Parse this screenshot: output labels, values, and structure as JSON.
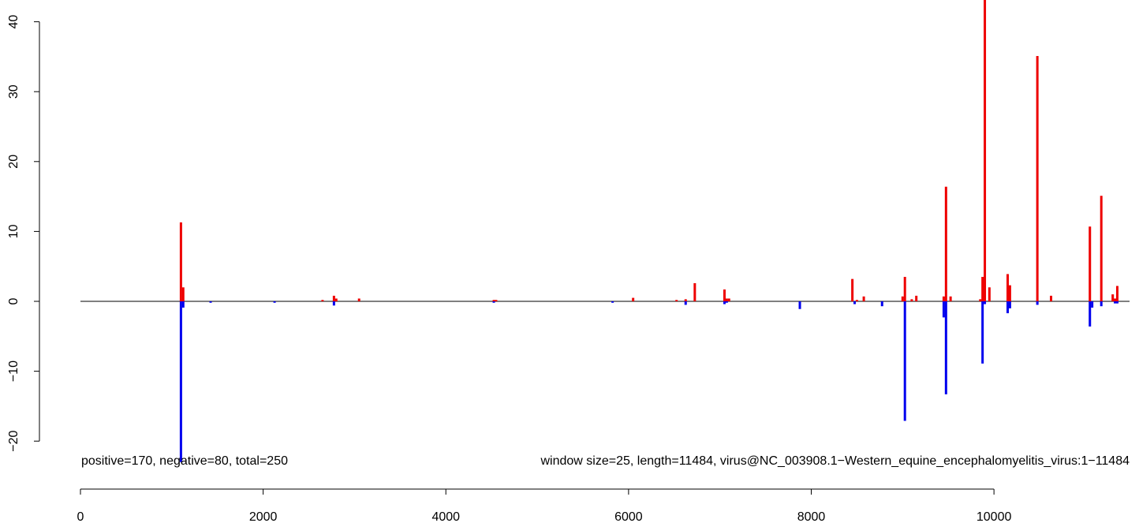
{
  "chart_data": {
    "type": "bar",
    "xlim": [
      0,
      11484
    ],
    "ylim": [
      -22,
      45
    ],
    "x_ticks": [
      0,
      2000,
      4000,
      6000,
      8000,
      10000
    ],
    "y_ticks": [
      -20,
      -10,
      0,
      10,
      20,
      30,
      40
    ],
    "annotations": {
      "counts": "positive=170, negative=80, total=250",
      "window": "window size=25, length=11484, virus@NC_003908.1−Western_equine_encephalomyelitis_virus:1−11484"
    },
    "colors": {
      "positive": "#ee0000",
      "negative": "#0000ee",
      "baseline": "#000000"
    },
    "series": [
      {
        "name": "positive",
        "x": [
          1100,
          1125,
          2650,
          2775,
          2800,
          3050,
          4525,
          4550,
          6050,
          6525,
          6625,
          6725,
          7050,
          7075,
          7100,
          8450,
          8500,
          8575,
          9000,
          9025,
          9100,
          9150,
          9450,
          9475,
          9525,
          9850,
          9875,
          9900,
          9950,
          10150,
          10175,
          10475,
          10625,
          11050,
          11175,
          11300,
          11325,
          11350
        ],
        "values": [
          11.3,
          2.0,
          0.2,
          0.8,
          0.4,
          0.4,
          0.2,
          0.2,
          0.5,
          0.2,
          0.3,
          2.6,
          1.7,
          0.4,
          0.4,
          3.2,
          0.2,
          0.7,
          0.7,
          3.5,
          0.3,
          0.8,
          0.7,
          16.4,
          0.7,
          0.3,
          3.5,
          45.0,
          2.0,
          3.9,
          2.3,
          35.1,
          0.8,
          10.7,
          15.1,
          1.0,
          0.4,
          2.2
        ]
      },
      {
        "name": "negative",
        "x": [
          1100,
          1125,
          1425,
          2125,
          2775,
          4525,
          5825,
          6625,
          7050,
          7075,
          7875,
          8475,
          8775,
          9025,
          9450,
          9475,
          9875,
          9900,
          10150,
          10175,
          10475,
          11050,
          11075,
          11175,
          11325,
          11350
        ],
        "values": [
          -23.0,
          -0.9,
          -0.2,
          -0.2,
          -0.6,
          -0.2,
          -0.2,
          -0.5,
          -0.4,
          -0.2,
          -1.1,
          -0.4,
          -0.7,
          -17.1,
          -2.3,
          -13.3,
          -8.9,
          -0.4,
          -1.7,
          -1.0,
          -0.5,
          -3.6,
          -0.9,
          -0.7,
          -0.3,
          -0.3
        ]
      }
    ]
  }
}
